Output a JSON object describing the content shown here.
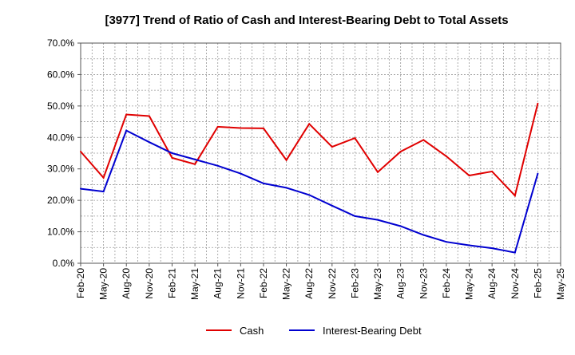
{
  "chart_data": {
    "type": "line",
    "title": "[3977]  Trend of Ratio of Cash and Interest-Bearing Debt to Total Assets",
    "xlabel": "",
    "ylabel": "",
    "ylim": [
      0,
      0.7
    ],
    "yticks": [
      "0.0%",
      "10.0%",
      "20.0%",
      "30.0%",
      "40.0%",
      "50.0%",
      "60.0%",
      "70.0%"
    ],
    "categories": [
      "Feb-20",
      "May-20",
      "Aug-20",
      "Nov-20",
      "Feb-21",
      "May-21",
      "Aug-21",
      "Nov-21",
      "Feb-22",
      "May-22",
      "Aug-22",
      "Nov-22",
      "Feb-23",
      "May-23",
      "Aug-23",
      "Nov-23",
      "Feb-24",
      "May-24",
      "Aug-24",
      "Nov-24",
      "Feb-25",
      "May-25"
    ],
    "grid": true,
    "legend_position": "bottom",
    "series": [
      {
        "name": "Cash",
        "color": "#e00000",
        "values": [
          0.355,
          0.272,
          0.473,
          0.468,
          0.335,
          0.315,
          0.434,
          0.43,
          0.429,
          0.328,
          0.443,
          0.37,
          0.398,
          0.29,
          0.355,
          0.392,
          0.34,
          0.279,
          0.292,
          0.215,
          0.508,
          null
        ]
      },
      {
        "name": "Interest-Bearing Debt",
        "color": "#0000d0",
        "values": [
          0.237,
          0.228,
          0.422,
          0.385,
          0.35,
          0.33,
          0.31,
          0.285,
          0.254,
          0.24,
          0.217,
          0.183,
          0.15,
          0.138,
          0.118,
          0.09,
          0.068,
          0.057,
          0.048,
          0.034,
          0.285,
          null
        ]
      }
    ]
  }
}
